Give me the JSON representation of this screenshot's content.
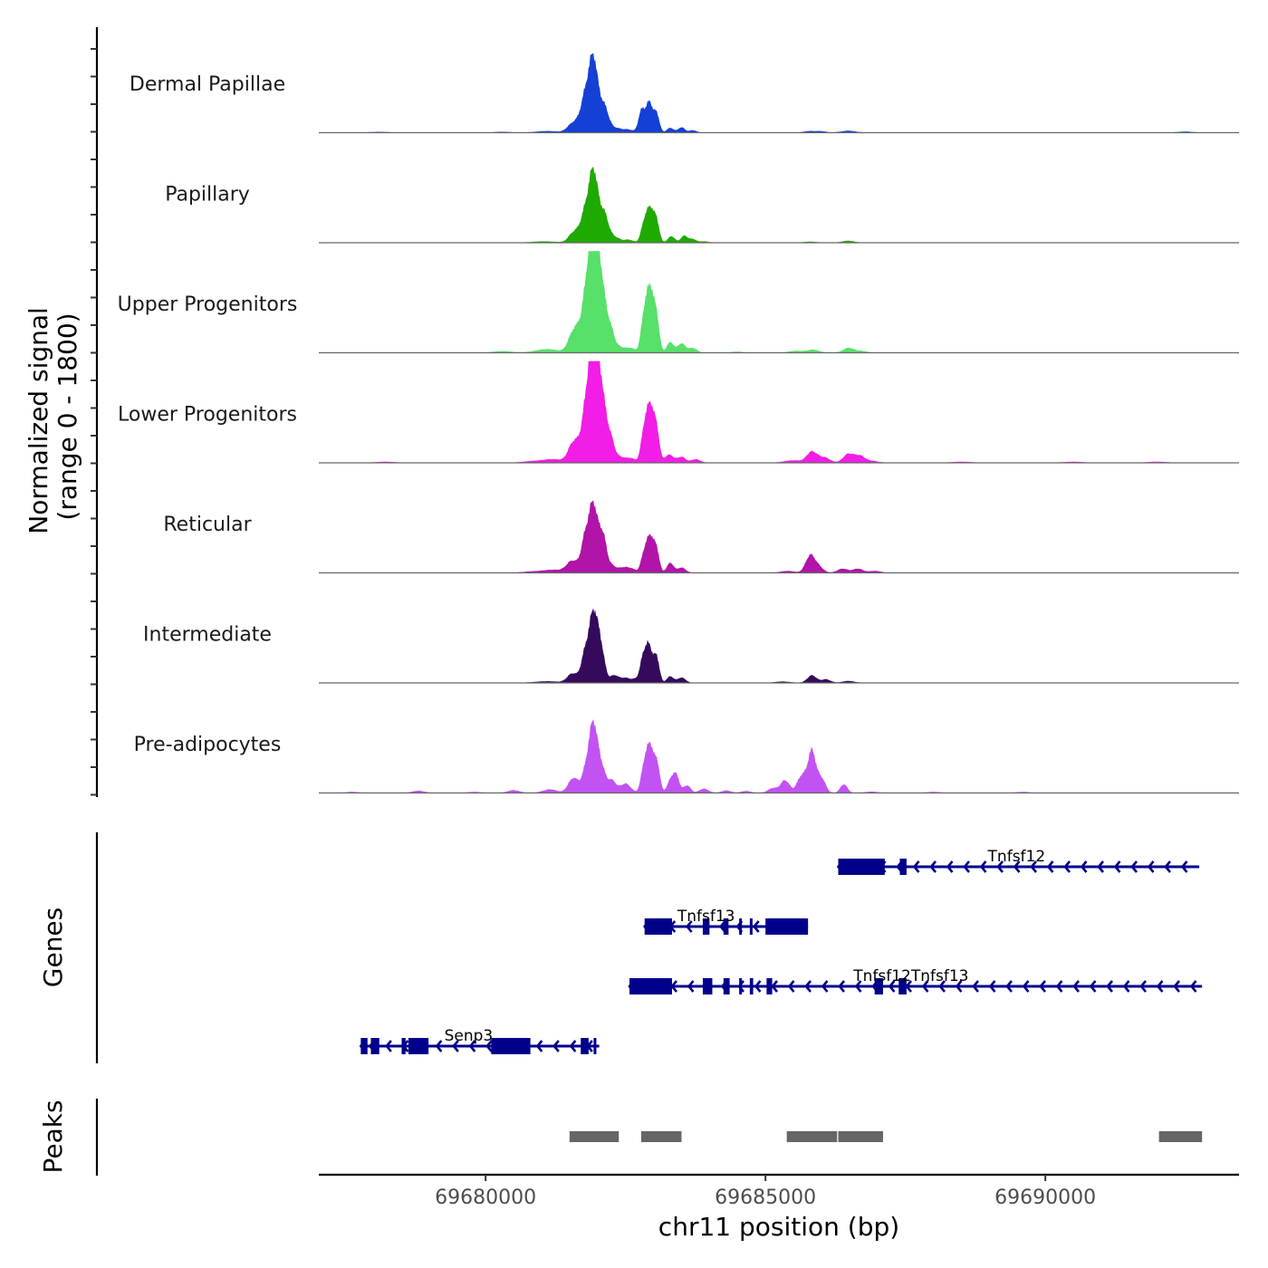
{
  "chart_data": {
    "type": "area",
    "title": "",
    "chromosome": "chr11",
    "xlabel": "chr11 position (bp)",
    "ylabel": "Normalized signal\n(range 0 - 1800)",
    "ylabel_lines": [
      "Normalized signal",
      "(range 0 - 1800)"
    ],
    "ylim": [
      0,
      1800
    ],
    "xlim": [
      69677020,
      69693460
    ],
    "x_ticks": [
      69680000,
      69685000,
      69690000
    ],
    "x_tick_labels": [
      "69680000",
      "69685000",
      "69690000"
    ],
    "grid": false,
    "baseline_color": "#666666",
    "series": [
      {
        "name": "Dermal Papillae",
        "color": "#1440d6",
        "peaks": [
          [
            69678100,
            10,
            150
          ],
          [
            69680300,
            12,
            120
          ],
          [
            69681100,
            25,
            180
          ],
          [
            69681570,
            170,
            100
          ],
          [
            69681800,
            700,
            90
          ],
          [
            69681930,
            1050,
            70
          ],
          [
            69682100,
            500,
            90
          ],
          [
            69682350,
            70,
            90
          ],
          [
            69682550,
            50,
            80
          ],
          [
            69682800,
            420,
            60
          ],
          [
            69682930,
            500,
            50
          ],
          [
            69683050,
            350,
            50
          ],
          [
            69683300,
            80,
            60
          ],
          [
            69683500,
            90,
            60
          ],
          [
            69683700,
            40,
            60
          ],
          [
            69685800,
            25,
            100
          ],
          [
            69686000,
            20,
            80
          ],
          [
            69686480,
            30,
            120
          ],
          [
            69692500,
            15,
            120
          ]
        ]
      },
      {
        "name": "Papillary",
        "color": "#1faa00",
        "peaks": [
          [
            69681050,
            20,
            200
          ],
          [
            69681580,
            180,
            90
          ],
          [
            69681800,
            600,
            90
          ],
          [
            69681930,
            1020,
            70
          ],
          [
            69682100,
            550,
            90
          ],
          [
            69682330,
            80,
            80
          ],
          [
            69682550,
            50,
            80
          ],
          [
            69682850,
            420,
            60
          ],
          [
            69682950,
            490,
            50
          ],
          [
            69683050,
            400,
            50
          ],
          [
            69683320,
            110,
            60
          ],
          [
            69683550,
            120,
            60
          ],
          [
            69683700,
            60,
            60
          ],
          [
            69683900,
            20,
            80
          ],
          [
            69685800,
            15,
            100
          ],
          [
            69686480,
            30,
            100
          ]
        ]
      },
      {
        "name": "Upper Progenitors",
        "color": "#57e06a",
        "peaks": [
          [
            69680300,
            25,
            150
          ],
          [
            69681100,
            60,
            200
          ],
          [
            69681570,
            350,
            90
          ],
          [
            69681700,
            250,
            80
          ],
          [
            69681830,
            1150,
            80
          ],
          [
            69681930,
            1660,
            65
          ],
          [
            69682050,
            1250,
            70
          ],
          [
            69682200,
            500,
            80
          ],
          [
            69682400,
            90,
            100
          ],
          [
            69682600,
            70,
            80
          ],
          [
            69682850,
            800,
            60
          ],
          [
            69682950,
            920,
            50
          ],
          [
            69683050,
            650,
            50
          ],
          [
            69683300,
            180,
            60
          ],
          [
            69683500,
            160,
            70
          ],
          [
            69683700,
            80,
            70
          ],
          [
            69684500,
            15,
            100
          ],
          [
            69685550,
            30,
            120
          ],
          [
            69685850,
            50,
            100
          ],
          [
            69686480,
            80,
            90
          ],
          [
            69686700,
            30,
            100
          ]
        ]
      },
      {
        "name": "Lower Progenitors",
        "color": "#f21de6",
        "peaks": [
          [
            69678200,
            15,
            150
          ],
          [
            69680800,
            20,
            150
          ],
          [
            69681200,
            60,
            200
          ],
          [
            69681570,
            340,
            90
          ],
          [
            69681720,
            200,
            80
          ],
          [
            69681830,
            1100,
            80
          ],
          [
            69681930,
            1500,
            65
          ],
          [
            69682050,
            1300,
            70
          ],
          [
            69682200,
            520,
            80
          ],
          [
            69682400,
            90,
            100
          ],
          [
            69682600,
            70,
            80
          ],
          [
            69682850,
            700,
            60
          ],
          [
            69682950,
            820,
            50
          ],
          [
            69683050,
            620,
            50
          ],
          [
            69683280,
            140,
            80
          ],
          [
            69683500,
            100,
            70
          ],
          [
            69683750,
            60,
            80
          ],
          [
            69685500,
            40,
            150
          ],
          [
            69685830,
            190,
            90
          ],
          [
            69686050,
            90,
            100
          ],
          [
            69686480,
            150,
            90
          ],
          [
            69686680,
            120,
            90
          ],
          [
            69686900,
            30,
            100
          ],
          [
            69688500,
            15,
            150
          ],
          [
            69690500,
            15,
            150
          ],
          [
            69692000,
            15,
            150
          ]
        ]
      },
      {
        "name": "Reticular",
        "color": "#b213a8",
        "peaks": [
          [
            69680800,
            15,
            150
          ],
          [
            69681200,
            50,
            200
          ],
          [
            69681550,
            200,
            100
          ],
          [
            69681800,
            700,
            80
          ],
          [
            69681930,
            1000,
            65
          ],
          [
            69682080,
            700,
            70
          ],
          [
            69682250,
            120,
            80
          ],
          [
            69682450,
            80,
            80
          ],
          [
            69682600,
            70,
            80
          ],
          [
            69682850,
            420,
            60
          ],
          [
            69682950,
            520,
            50
          ],
          [
            69683050,
            420,
            50
          ],
          [
            69683300,
            170,
            60
          ],
          [
            69683500,
            90,
            70
          ],
          [
            69685400,
            30,
            120
          ],
          [
            69685800,
            300,
            80
          ],
          [
            69685950,
            100,
            80
          ],
          [
            69686380,
            70,
            90
          ],
          [
            69686650,
            70,
            90
          ],
          [
            69686950,
            30,
            100
          ]
        ]
      },
      {
        "name": "Intermediate",
        "color": "#350a5c",
        "peaks": [
          [
            69681100,
            25,
            200
          ],
          [
            69681550,
            160,
            90
          ],
          [
            69681800,
            600,
            80
          ],
          [
            69681930,
            1000,
            65
          ],
          [
            69682050,
            650,
            70
          ],
          [
            69682300,
            130,
            80
          ],
          [
            69682500,
            80,
            80
          ],
          [
            69682700,
            70,
            80
          ],
          [
            69682830,
            500,
            55
          ],
          [
            69682930,
            560,
            50
          ],
          [
            69683050,
            470,
            50
          ],
          [
            69683300,
            110,
            60
          ],
          [
            69683500,
            90,
            70
          ],
          [
            69685300,
            20,
            120
          ],
          [
            69685830,
            130,
            80
          ],
          [
            69686080,
            60,
            80
          ],
          [
            69686480,
            30,
            100
          ]
        ]
      },
      {
        "name": "Pre-adipocytes",
        "color": "#c352f2",
        "peaks": [
          [
            69677620,
            15,
            100
          ],
          [
            69678800,
            35,
            100
          ],
          [
            69679800,
            15,
            100
          ],
          [
            69680500,
            45,
            100
          ],
          [
            69681150,
            60,
            120
          ],
          [
            69681570,
            260,
            90
          ],
          [
            69681820,
            500,
            80
          ],
          [
            69681930,
            1000,
            65
          ],
          [
            69682060,
            470,
            70
          ],
          [
            69682250,
            220,
            80
          ],
          [
            69682500,
            160,
            90
          ],
          [
            69682850,
            580,
            60
          ],
          [
            69682950,
            690,
            50
          ],
          [
            69683060,
            540,
            50
          ],
          [
            69683300,
            180,
            60
          ],
          [
            69683400,
            300,
            60
          ],
          [
            69683600,
            130,
            60
          ],
          [
            69683900,
            70,
            80
          ],
          [
            69684300,
            40,
            80
          ],
          [
            69684650,
            30,
            80
          ],
          [
            69685130,
            80,
            80
          ],
          [
            69685350,
            220,
            80
          ],
          [
            69685650,
            300,
            80
          ],
          [
            69685830,
            720,
            70
          ],
          [
            69686000,
            250,
            70
          ],
          [
            69686400,
            150,
            60
          ],
          [
            69686900,
            20,
            100
          ],
          [
            69688000,
            15,
            100
          ],
          [
            69689600,
            15,
            100
          ]
        ]
      }
    ],
    "genes_track": {
      "label": "Genes",
      "color": "#00008b",
      "genes": [
        {
          "name": "Tnfsf12",
          "strand": "-",
          "start": 69686300,
          "end": 69692750,
          "exons": [
            [
              69686300,
              69687130
            ],
            [
              69687400,
              69687520
            ]
          ]
        },
        {
          "name": "Tnfsf13",
          "strand": "-",
          "start": 69682840,
          "end": 69685760,
          "exons": [
            [
              69682840,
              69683330
            ],
            [
              69683880,
              69684000
            ],
            [
              69684250,
              69684340
            ],
            [
              69684530,
              69684560
            ],
            [
              69684720,
              69684760
            ],
            [
              69685000,
              69685760
            ]
          ]
        },
        {
          "name": "Tnfsf12Tnfsf13",
          "strand": "-",
          "start": 69682570,
          "end": 69692800,
          "exons": [
            [
              69682570,
              69683330
            ],
            [
              69683880,
              69684050
            ],
            [
              69684250,
              69684360
            ],
            [
              69684530,
              69684560
            ],
            [
              69684720,
              69684780
            ],
            [
              69685020,
              69685120
            ],
            [
              69686950,
              69687100
            ],
            [
              69687380,
              69687520
            ]
          ]
        },
        {
          "name": "Senp3",
          "strand": "-",
          "start": 69677770,
          "end": 69682030,
          "exons": [
            [
              69677770,
              69677890
            ],
            [
              69677950,
              69678100
            ],
            [
              69678500,
              69678570
            ],
            [
              69678620,
              69678980
            ],
            [
              69680100,
              69680800
            ],
            [
              69681700,
              69681840
            ],
            [
              69681930,
              69681960
            ]
          ]
        }
      ]
    },
    "peaks_track": {
      "label": "Peaks",
      "color": "#666666",
      "regions": [
        [
          69681500,
          69682380
        ],
        [
          69682780,
          69683500
        ],
        [
          69685380,
          69686280
        ],
        [
          69686300,
          69687100
        ],
        [
          69692030,
          69692800
        ]
      ]
    }
  }
}
